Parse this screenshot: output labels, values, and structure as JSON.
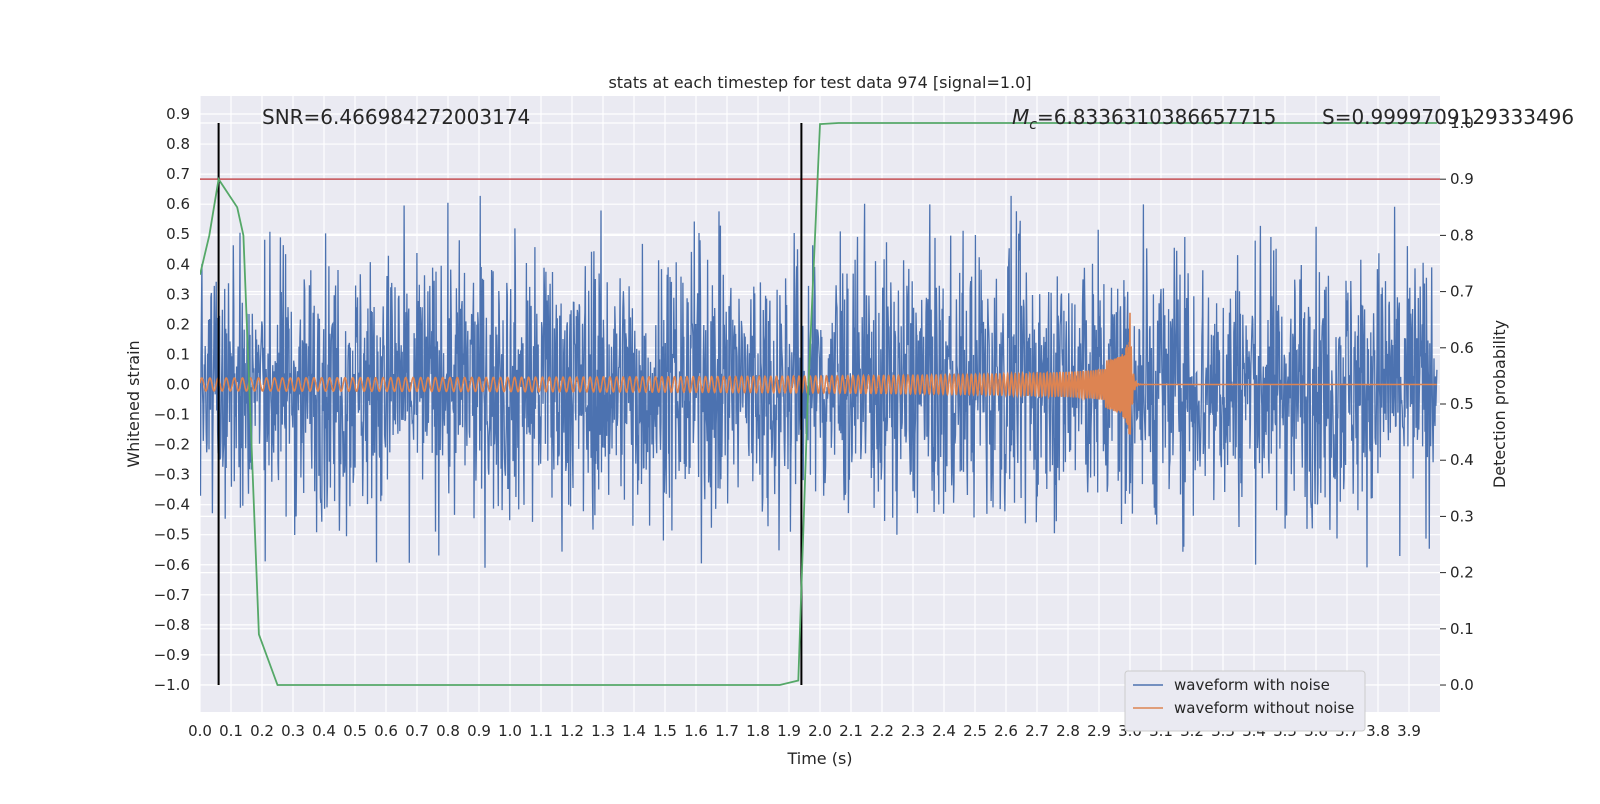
{
  "chart_data": {
    "type": "line",
    "title": "stats at each timestep for test data 974 [signal=1.0]",
    "xlabel": "Time (s)",
    "ylabel": "Whitened strain",
    "y2label": "Detection probability",
    "xlim": [
      0.0,
      4.0
    ],
    "ylim": [
      -1.09,
      0.96
    ],
    "y2lim": [
      -0.048,
      1.048
    ],
    "grid": true,
    "x_ticks": [
      "0.0",
      "0.1",
      "0.2",
      "0.3",
      "0.4",
      "0.5",
      "0.6",
      "0.7",
      "0.8",
      "0.9",
      "1.0",
      "1.1",
      "1.2",
      "1.3",
      "1.4",
      "1.5",
      "1.6",
      "1.7",
      "1.8",
      "1.9",
      "2.0",
      "2.1",
      "2.2",
      "2.3",
      "2.4",
      "2.5",
      "2.6",
      "2.7",
      "2.8",
      "2.9",
      "3.0",
      "3.1",
      "3.2",
      "3.3",
      "3.4",
      "3.5",
      "3.6",
      "3.7",
      "3.8",
      "3.9"
    ],
    "y_ticks": [
      "0.9",
      "0.8",
      "0.7",
      "0.6",
      "0.5",
      "0.4",
      "0.3",
      "0.2",
      "0.1",
      "0.0",
      "−0.1",
      "−0.2",
      "−0.3",
      "−0.4",
      "−0.5",
      "−0.6",
      "−0.7",
      "−0.8",
      "−0.9",
      "−1.0"
    ],
    "y2_ticks": [
      "1.0",
      "0.9",
      "0.8",
      "0.7",
      "0.6",
      "0.5",
      "0.4",
      "0.3",
      "0.2",
      "0.1",
      "0.0"
    ],
    "annotations": {
      "snr": "SNR=6.466984272003174",
      "mc_symbol": "M",
      "mc_sub": "c",
      "mc_value": "=6.8336310386657715",
      "s": "S=0.9999709129333496"
    },
    "threshold": {
      "value": 0.9,
      "axis": "right",
      "color": "#c44e52"
    },
    "vlines": [
      0.06,
      1.94
    ],
    "series": [
      {
        "name": "waveform with noise",
        "color": "#4c72b0",
        "type": "noise",
        "axis": "left",
        "typical_amplitude": 0.3,
        "peak_max": 0.86,
        "peak_min": -1.0
      },
      {
        "name": "waveform without noise",
        "color": "#dd8452",
        "type": "chirp",
        "axis": "left",
        "start_amplitude": 0.02,
        "merger_time": 3.0,
        "merger_amplitude_max": 0.15,
        "merger_amplitude_min": -0.24
      },
      {
        "color": "#55a868",
        "type": "probability",
        "axis": "right",
        "x": [
          0.0,
          0.03,
          0.06,
          0.12,
          0.14,
          0.19,
          0.25,
          0.4,
          1.0,
          1.5,
          1.87,
          1.93,
          1.96,
          2.0,
          2.06,
          2.5,
          3.0,
          3.5,
          3.99
        ],
        "y": [
          0.73,
          0.8,
          0.9,
          0.85,
          0.8,
          0.09,
          0.0,
          0.0,
          0.0,
          0.0,
          0.0,
          0.008,
          0.5,
          0.998,
          1.0,
          1.0,
          1.0,
          1.0,
          1.0
        ]
      }
    ],
    "legend_placement": "lower-right",
    "colors": {
      "axes_bg": "#eaeaf2",
      "grid": "#ffffff",
      "vline": "#000000"
    }
  }
}
